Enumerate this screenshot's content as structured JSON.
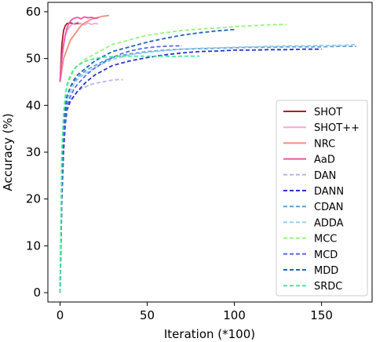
{
  "chart_data": {
    "type": "line",
    "title": "",
    "xlabel": "Iteration (*100)",
    "ylabel": "Accuracy (%)",
    "xlim": [
      -7,
      179
    ],
    "ylim": [
      -2,
      62
    ],
    "x_ticks": [
      0,
      50,
      100,
      150
    ],
    "y_ticks": [
      0,
      10,
      20,
      30,
      40,
      50,
      60
    ],
    "grid": false,
    "legend_position": "bottom-right",
    "series": [
      {
        "name": "SHOT",
        "color": "#b01c2a",
        "style": "solid",
        "x": [
          0,
          1,
          2,
          3,
          4,
          6,
          8,
          10,
          12
        ],
        "y": [
          45,
          53,
          56,
          57,
          57.5,
          57.6,
          57.4,
          57.5,
          57.5
        ]
      },
      {
        "name": "SHOT++",
        "color": "#f5a8d8",
        "style": "solid",
        "x": [
          0,
          1,
          2,
          3,
          4,
          6,
          8,
          10,
          12,
          14,
          16,
          18,
          20,
          22
        ],
        "y": [
          45,
          50,
          53,
          55,
          56,
          57,
          57.5,
          57.8,
          57.4,
          57.2,
          57.6,
          57.3,
          57.5,
          57.4
        ]
      },
      {
        "name": "NRC",
        "color": "#f08f7e",
        "style": "solid",
        "x": [
          0,
          2,
          4,
          6,
          8,
          10,
          12,
          14,
          16,
          18,
          20,
          22,
          24,
          26,
          28
        ],
        "y": [
          45,
          50,
          52,
          54,
          55,
          56,
          57,
          57.6,
          58,
          58.4,
          58.6,
          58.8,
          59,
          59.1,
          59.2
        ]
      },
      {
        "name": "AaD",
        "color": "#ee55aa",
        "style": "solid",
        "x": [
          0,
          1,
          2,
          3,
          4,
          5,
          6,
          7,
          8,
          10,
          12,
          14,
          16,
          18,
          20,
          22
        ],
        "y": [
          45,
          50,
          53,
          55,
          56.5,
          57.5,
          58,
          58.4,
          58.6,
          58.8,
          58.5,
          58.9,
          58.7,
          58.8,
          58.6,
          58.7
        ]
      },
      {
        "name": "DAN",
        "color": "#b8b4ec",
        "style": "dashed",
        "x": [
          0,
          1,
          2,
          3,
          4,
          6,
          8,
          10,
          12,
          15,
          18,
          21,
          24,
          27,
          30,
          33,
          36
        ],
        "y": [
          0,
          25,
          34,
          38,
          40,
          41,
          42,
          43,
          43.5,
          44,
          44.5,
          44.8,
          45,
          45.2,
          45.4,
          45.5,
          45.5
        ]
      },
      {
        "name": "DANN",
        "color": "#2832cc",
        "style": "dashed",
        "x": [
          0,
          1,
          2,
          3,
          4,
          6,
          8,
          10,
          15,
          20,
          25,
          30,
          40,
          50,
          60,
          70,
          80,
          90,
          100,
          110,
          120,
          130,
          140,
          150
        ],
        "y": [
          0,
          20,
          30,
          36,
          39,
          41,
          42,
          43,
          45,
          46.5,
          47.5,
          48.5,
          49.5,
          50.2,
          50.8,
          51.2,
          51.5,
          51.6,
          51.8,
          51.8,
          51.9,
          51.9,
          52,
          52
        ]
      },
      {
        "name": "CDAN",
        "color": "#5aa0d6",
        "style": "dashed",
        "x": [
          0,
          1,
          2,
          3,
          4,
          6,
          8,
          10,
          15,
          20,
          25,
          30,
          40,
          50,
          60,
          70,
          80,
          90,
          100,
          110,
          120,
          130,
          140,
          150,
          160,
          170
        ],
        "y": [
          0,
          25,
          35,
          40,
          42,
          44,
          45,
          46,
          47.5,
          48.5,
          49.5,
          50.2,
          51,
          51.5,
          51.8,
          52,
          52.1,
          52.2,
          52.3,
          52.4,
          52.4,
          52.5,
          52.5,
          52.5,
          52.6,
          52.6
        ]
      },
      {
        "name": "ADDA",
        "color": "#98ccec",
        "style": "dashed",
        "x": [
          0,
          1,
          2,
          3,
          4,
          6,
          8,
          10,
          15,
          20,
          25,
          30,
          40,
          50,
          60,
          70,
          80,
          90,
          100,
          110,
          120,
          130,
          140,
          150,
          160,
          170
        ],
        "y": [
          0,
          22,
          33,
          38,
          41,
          43,
          44.5,
          45.5,
          47,
          48,
          49,
          49.8,
          50.8,
          51.3,
          51.7,
          52,
          52.2,
          52.3,
          52.4,
          52.5,
          52.6,
          52.7,
          52.7,
          52.8,
          52.8,
          53
        ]
      },
      {
        "name": "MCC",
        "color": "#98f47c",
        "style": "dashed",
        "x": [
          0,
          1,
          2,
          3,
          4,
          6,
          8,
          10,
          15,
          20,
          25,
          30,
          40,
          50,
          60,
          70,
          80,
          90,
          100,
          110,
          120,
          130
        ],
        "y": [
          0,
          30,
          38,
          42,
          44,
          46,
          47.5,
          48.5,
          50,
          51,
          52,
          53,
          54,
          55,
          55.5,
          56,
          56.3,
          56.5,
          56.8,
          57,
          57.2,
          57.3
        ]
      },
      {
        "name": "MCD",
        "color": "#5a6ae0",
        "style": "dashed",
        "x": [
          0,
          1,
          2,
          3,
          4,
          6,
          8,
          10,
          15,
          20,
          25,
          30,
          35,
          40,
          45,
          50,
          55,
          60,
          65,
          70
        ],
        "y": [
          0,
          22,
          32,
          37,
          40,
          42,
          43.5,
          44.5,
          46.5,
          48,
          49.2,
          50.2,
          51,
          51.6,
          52,
          52.3,
          52.5,
          52.6,
          52.7,
          52.7
        ]
      },
      {
        "name": "MDD",
        "color": "#1e64c0",
        "style": "dashed",
        "x": [
          0,
          1,
          2,
          3,
          4,
          6,
          8,
          10,
          15,
          20,
          25,
          30,
          40,
          50,
          60,
          70,
          80,
          90,
          100
        ],
        "y": [
          0,
          24,
          34,
          39,
          42,
          44,
          45.5,
          46.5,
          48,
          49.5,
          50.5,
          51.5,
          52.5,
          53.5,
          54.3,
          55,
          55.5,
          55.9,
          56.2
        ]
      },
      {
        "name": "SRDC",
        "color": "#46e89a",
        "style": "dashed",
        "x": [
          0,
          1,
          2,
          3,
          4,
          6,
          8,
          10,
          15,
          20,
          25,
          30,
          35,
          40,
          45,
          50,
          55,
          60,
          65,
          70,
          75,
          80
        ],
        "y": [
          0,
          30,
          38,
          42,
          44.5,
          46.5,
          47.8,
          48.5,
          49.5,
          50,
          50.3,
          50.4,
          50.5,
          50.5,
          50.5,
          50.5,
          50.5,
          50.5,
          50.4,
          50.5,
          50.5,
          50.5
        ]
      }
    ]
  }
}
